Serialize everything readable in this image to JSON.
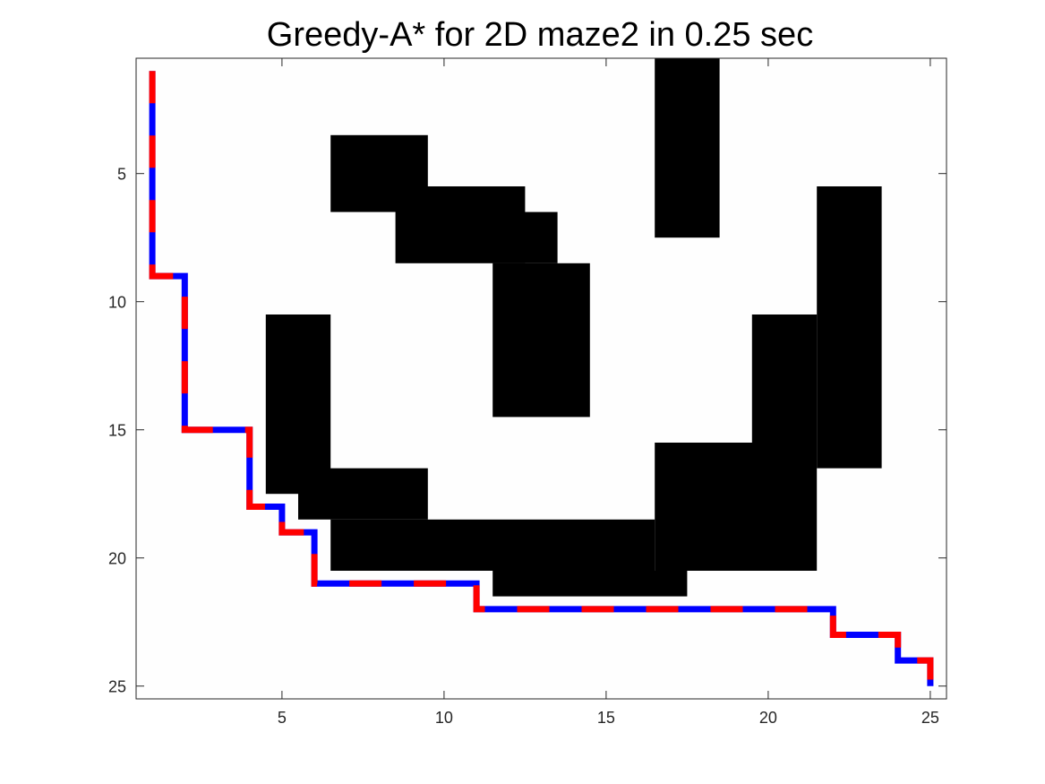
{
  "chart_data": {
    "type": "heatmap",
    "title": "Greedy-A* for 2D maze2 in 0.25 sec",
    "xlabel": "",
    "ylabel": "",
    "xlim": [
      0.5,
      25.5
    ],
    "ylim": [
      0.5,
      25.5
    ],
    "y_reversed": true,
    "xticks": [
      5,
      10,
      15,
      20,
      25
    ],
    "yticks": [
      5,
      10,
      15,
      20,
      25
    ],
    "grid": false,
    "colors": {
      "free": "#fefefe",
      "obstacle": "#000000",
      "path_a": "#ff0000",
      "path_b": "#0000ff",
      "axes": "#262626"
    },
    "obstacles": [
      {
        "rows": [
          1,
          7
        ],
        "cols": [
          17,
          18
        ]
      },
      {
        "rows": [
          4,
          6
        ],
        "cols": [
          7,
          9
        ]
      },
      {
        "rows": [
          6,
          8
        ],
        "cols": [
          9,
          12
        ]
      },
      {
        "rows": [
          7,
          8
        ],
        "cols": [
          12,
          13
        ]
      },
      {
        "rows": [
          9,
          14
        ],
        "cols": [
          12,
          14
        ]
      },
      {
        "rows": [
          6,
          16
        ],
        "cols": [
          22,
          23
        ]
      },
      {
        "rows": [
          11,
          15
        ],
        "cols": [
          20,
          21
        ]
      },
      {
        "rows": [
          16,
          20
        ],
        "cols": [
          17,
          21
        ]
      },
      {
        "rows": [
          11,
          17
        ],
        "cols": [
          5,
          6
        ]
      },
      {
        "rows": [
          17,
          18
        ],
        "cols": [
          6,
          9
        ]
      },
      {
        "rows": [
          19,
          20
        ],
        "cols": [
          7,
          16
        ]
      },
      {
        "rows": [
          21,
          21
        ],
        "cols": [
          12,
          17
        ]
      }
    ],
    "series": [
      {
        "style": "dashed-red-blue",
        "points": [
          [
            1,
            1
          ],
          [
            1,
            9
          ],
          [
            2,
            9
          ],
          [
            2,
            15
          ],
          [
            4,
            15
          ],
          [
            4,
            18
          ],
          [
            5,
            18
          ],
          [
            5,
            19
          ],
          [
            6,
            19
          ],
          [
            6,
            21
          ],
          [
            11,
            21
          ],
          [
            11,
            22
          ],
          [
            22,
            22
          ],
          [
            22,
            23
          ],
          [
            24,
            23
          ],
          [
            24,
            24
          ],
          [
            25,
            24
          ],
          [
            25,
            25
          ]
        ]
      }
    ]
  }
}
